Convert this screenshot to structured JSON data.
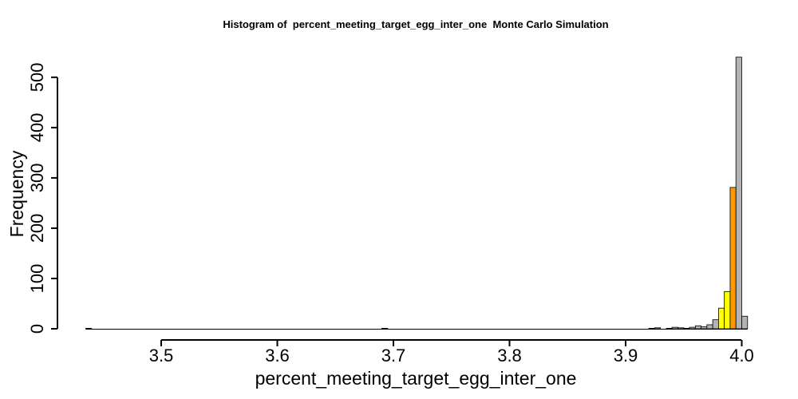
{
  "chart_data": {
    "type": "bar",
    "title": "Histogram of  percent_meeting_target_egg_inter_one  Monte Carlo Simulation",
    "xlabel": "percent_meeting_target_egg_inter_one",
    "ylabel": "Frequency",
    "xlim": [
      3.435,
      4.005
    ],
    "ylim": [
      0,
      540
    ],
    "x_ticks": [
      "3.5",
      "3.6",
      "3.7",
      "3.8",
      "3.9",
      "4.0"
    ],
    "y_ticks": [
      "0",
      "100",
      "200",
      "300",
      "400",
      "500"
    ],
    "grid": false,
    "legend": "none",
    "bin_width": 0.005,
    "bins": [
      {
        "start": 3.435,
        "count": 1,
        "color": "#b3b3b3"
      },
      {
        "start": 3.69,
        "count": 1,
        "color": "#b3b3b3"
      },
      {
        "start": 3.92,
        "count": 1,
        "color": "#b3b3b3"
      },
      {
        "start": 3.925,
        "count": 2,
        "color": "#b3b3b3"
      },
      {
        "start": 3.935,
        "count": 1,
        "color": "#b3b3b3"
      },
      {
        "start": 3.94,
        "count": 3,
        "color": "#b3b3b3"
      },
      {
        "start": 3.945,
        "count": 2,
        "color": "#b3b3b3"
      },
      {
        "start": 3.95,
        "count": 1,
        "color": "#b3b3b3"
      },
      {
        "start": 3.955,
        "count": 3,
        "color": "#b3b3b3"
      },
      {
        "start": 3.96,
        "count": 6,
        "color": "#b3b3b3"
      },
      {
        "start": 3.965,
        "count": 4,
        "color": "#b3b3b3"
      },
      {
        "start": 3.97,
        "count": 8,
        "color": "#b3b3b3"
      },
      {
        "start": 3.975,
        "count": 18,
        "color": "#b3b3b3"
      },
      {
        "start": 3.98,
        "count": 41,
        "color": "#ffff00"
      },
      {
        "start": 3.985,
        "count": 74,
        "color": "#ffff00"
      },
      {
        "start": 3.99,
        "count": 281,
        "color": "#ff9900"
      },
      {
        "start": 3.995,
        "count": 540,
        "color": "#b3b3b3"
      },
      {
        "start": 4.0,
        "count": 25,
        "color": "#b3b3b3"
      }
    ],
    "colors": {
      "default_bar": "#b3b3b3",
      "highlight_inner": "#ff9900",
      "highlight_outer": "#ffff00"
    }
  }
}
